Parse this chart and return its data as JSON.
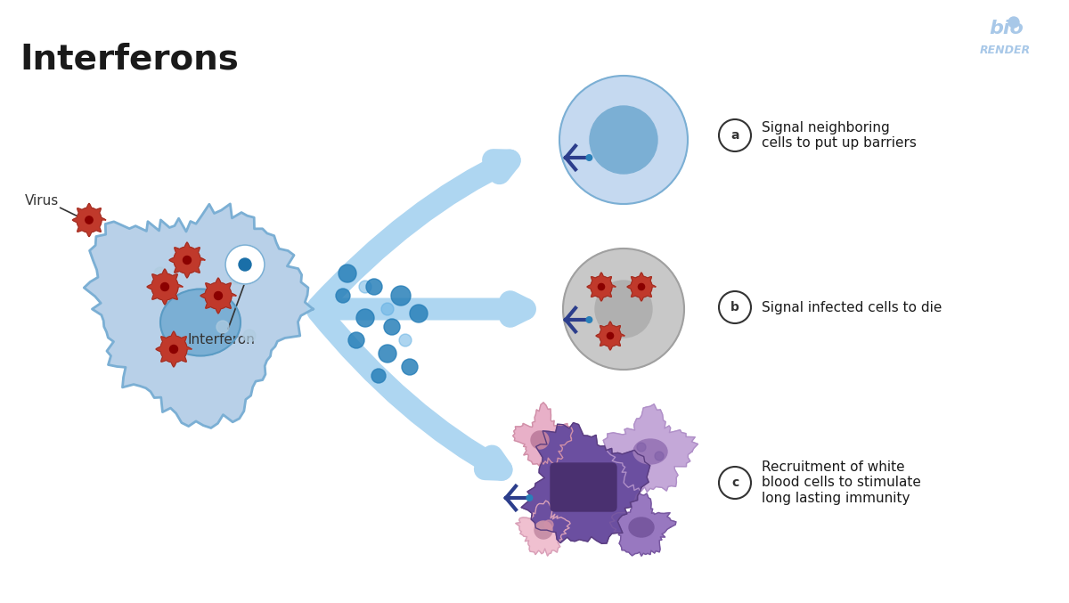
{
  "title": "Interferons",
  "bg_color": "#ffffff",
  "title_color": "#1a1a1a",
  "title_fontsize": 28,
  "title_fontweight": "bold",
  "label_a_text": "Signal neighboring\ncells to put up barriers",
  "label_b_text": "Signal infected cells to die",
  "label_c_text": "Recruitment of white\nblood cells to stimulate\nlong lasting immunity",
  "virus_label": "Virus",
  "interferon_label": "Interferon",
  "cell_fill_color": "#b8d0e8",
  "cell_border_color": "#7bafd4",
  "nucleus_color": "#7bafd4",
  "nucleus_border": "#5a9bc4",
  "virus_color": "#c0392b",
  "virus_spike_color": "#922b21",
  "interferon_dot_color": "#1a6fa8",
  "blue_dot_color": "#2980b9",
  "arrow_color": "#aed6f1",
  "arrow_b_color": "#aed6f1",
  "antibody_color": "#2c3e8c",
  "antibody_dot_color": "#2980b9",
  "healthy_cell_fill": "#c5d9f0",
  "healthy_cell_border": "#7bafd4",
  "healthy_nucleus_fill": "#7bafd4",
  "infected_cell_fill": "#c8c8c8",
  "infected_cell_border": "#a0a0a0",
  "infected_nucleus_fill": "#b0b0b0",
  "wbc_purple_dark": "#6b4fa0",
  "wbc_purple_light": "#c4a8d8",
  "wbc_pink": "#e8a0b8",
  "circle_label_border": "#333333",
  "biorender_color": "#a8c8e8",
  "biorender_text": "bio\nRENDER"
}
